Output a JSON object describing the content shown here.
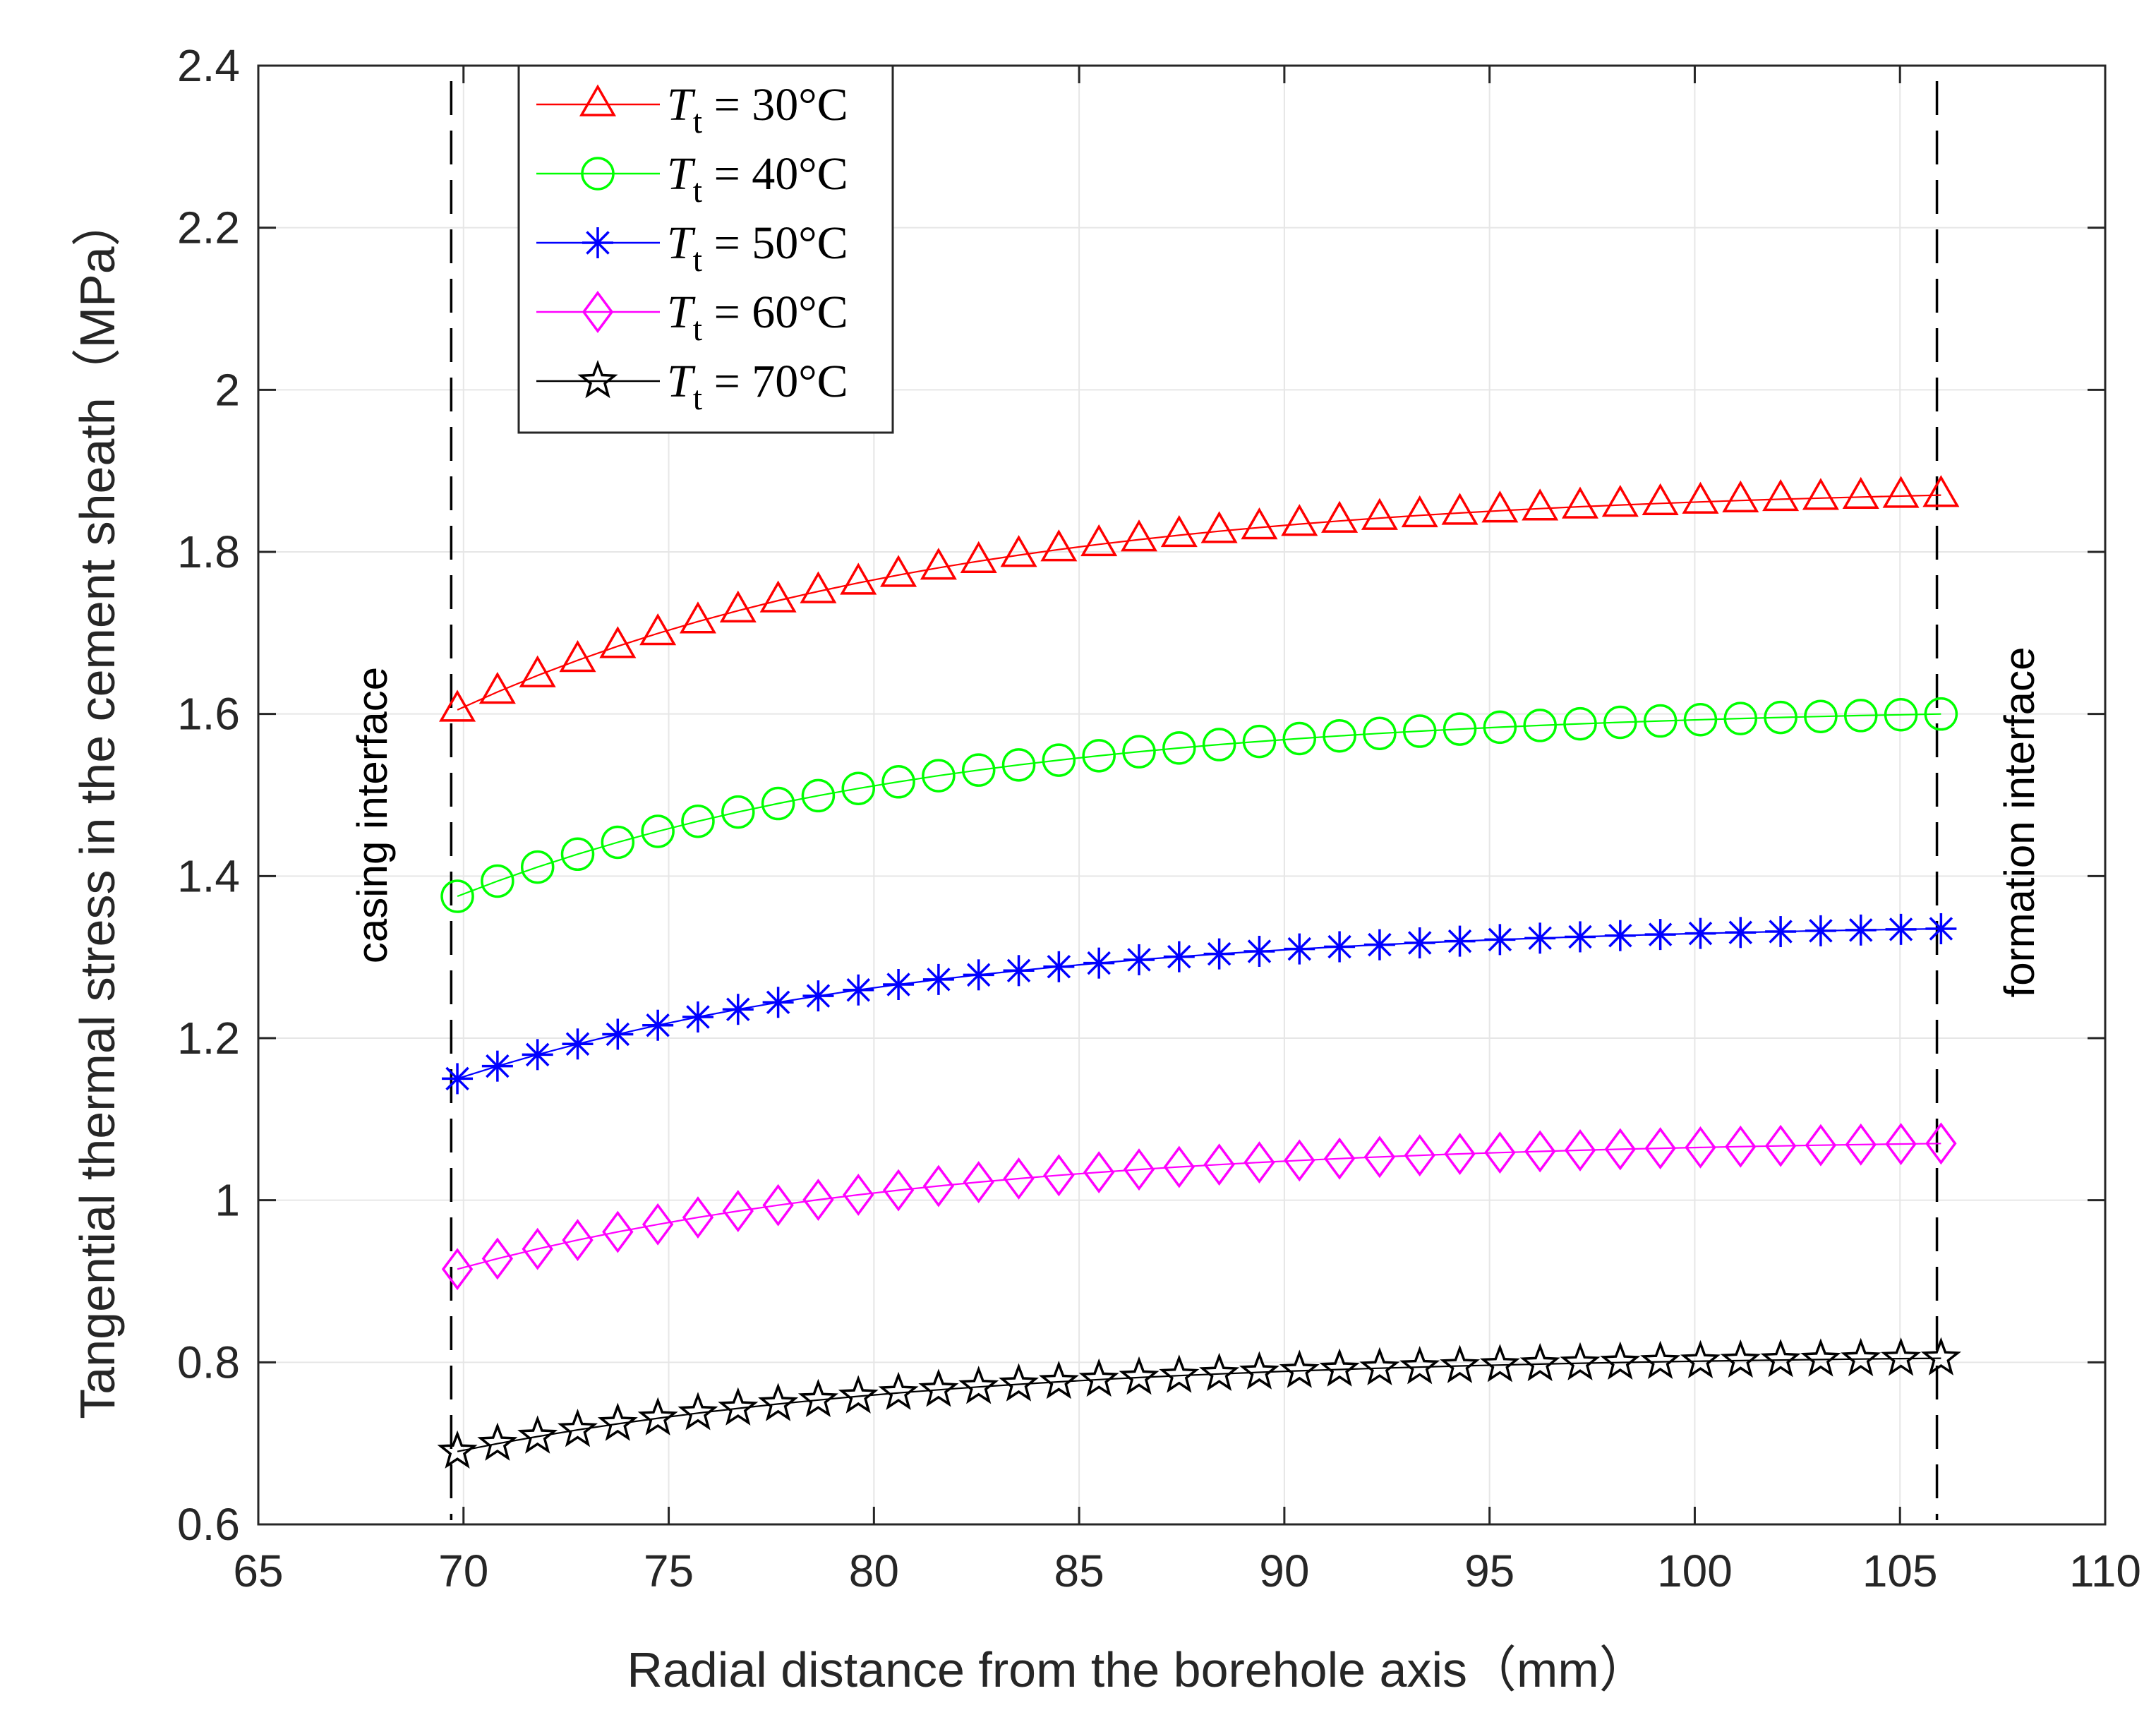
{
  "chart_data": {
    "type": "line",
    "title": "",
    "xlabel": "Radial distance from the borehole axis（mm）",
    "ylabel": "Tangential thermal stress in the cement sheath（MPa）",
    "xlim": [
      65,
      110
    ],
    "ylim": [
      0.6,
      2.4
    ],
    "xticks": [
      65,
      70,
      75,
      80,
      85,
      90,
      95,
      100,
      105,
      110
    ],
    "yticks": [
      0.6,
      0.8,
      1,
      1.2,
      1.4,
      1.6,
      1.8,
      2,
      2.2,
      2.4
    ],
    "xtick_labels": [
      "65",
      "70",
      "75",
      "80",
      "85",
      "90",
      "95",
      "100",
      "105",
      "110"
    ],
    "ytick_labels": [
      "0.6",
      "0.8",
      "1",
      "1.2",
      "1.4",
      "1.6",
      "1.8",
      "2",
      "2.2",
      "2.4"
    ],
    "grid": true,
    "legend_position": "top-left",
    "x_start": 69.85,
    "x_end": 106.0,
    "num_points": 38,
    "vertical_reference_lines": [
      {
        "x": 69.7,
        "label": "casing interface",
        "style": "dashed"
      },
      {
        "x": 105.9,
        "label": "formation interface",
        "style": "dashed"
      }
    ],
    "series": [
      {
        "name": "T_t = 30°C",
        "legend_symbol": "T",
        "legend_subscript": "t",
        "legend_value": " = 30°C",
        "color": "#ff0000",
        "marker": "triangle",
        "y_start": 1.605,
        "y_end": 1.87
      },
      {
        "name": "T_t = 40°C",
        "legend_symbol": "T",
        "legend_subscript": "t",
        "legend_value": " = 40°C",
        "color": "#00ff00",
        "marker": "circle",
        "y_start": 1.375,
        "y_end": 1.6
      },
      {
        "name": "T_t = 50°C",
        "legend_symbol": "T",
        "legend_subscript": "t",
        "legend_value": " = 50°C",
        "color": "#0000ff",
        "marker": "asterisk",
        "y_start": 1.15,
        "y_end": 1.335
      },
      {
        "name": "T_t = 60°C",
        "legend_symbol": "T",
        "legend_subscript": "t",
        "legend_value": " = 60°C",
        "color": "#ff00ff",
        "marker": "diamond",
        "y_start": 0.915,
        "y_end": 1.07
      },
      {
        "name": "T_t = 70°C",
        "legend_symbol": "T",
        "legend_subscript": "t",
        "legend_value": " = 70°C",
        "color": "#000000",
        "marker": "star",
        "y_start": 0.69,
        "y_end": 0.805
      }
    ]
  }
}
